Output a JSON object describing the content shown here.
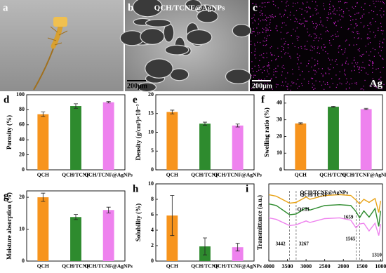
{
  "images": [
    {
      "panel": "a"
    },
    {
      "panel": "b",
      "label": "QCH/TCNF@AgNPs",
      "scale": "200μm"
    },
    {
      "panel": "c",
      "scale": "200μm",
      "element": "Ag"
    }
  ],
  "chart_data": [
    {
      "type": "bar",
      "panel": "d",
      "ylabel": "Porosity (%)",
      "categories": [
        "QCH",
        "QCH/TCNF",
        "QCH/TCNF@AgNPs"
      ],
      "values": [
        74,
        85,
        90
      ],
      "errors": [
        3,
        3,
        1
      ],
      "colors": [
        "#f7941d",
        "#2e8b2e",
        "#ee82ee"
      ],
      "ylim": [
        0,
        100
      ],
      "yticks": [
        0,
        20,
        40,
        60,
        80,
        100
      ]
    },
    {
      "type": "bar",
      "panel": "e",
      "ylabel": "Density (g/cm³)×10⁻³",
      "categories": [
        "QCH",
        "QCH/TCNF",
        "QCH/TCNF@AgNPs"
      ],
      "values": [
        15.4,
        12.3,
        11.8
      ],
      "errors": [
        0.5,
        0.4,
        0.4
      ],
      "colors": [
        "#f7941d",
        "#2e8b2e",
        "#ee82ee"
      ],
      "ylim": [
        0,
        20
      ],
      "yticks": [
        0,
        5,
        10,
        15,
        20
      ]
    },
    {
      "type": "bar",
      "panel": "f",
      "ylabel": "Swelling ratio (%)",
      "categories": [
        "QCH",
        "QCH/TCNF",
        "QCH/TCNF@AgNPs"
      ],
      "values": [
        27.8,
        37.8,
        36.4
      ],
      "errors": [
        0.4,
        0.3,
        0.5
      ],
      "colors": [
        "#f7941d",
        "#2e8b2e",
        "#ee82ee"
      ],
      "ylim": [
        0,
        45
      ],
      "yticks": [
        0,
        10,
        20,
        30,
        40
      ]
    },
    {
      "type": "bar",
      "panel": "g",
      "ylabel": "Moisture absorption (%)",
      "categories": [
        "QCH",
        "QCH/TCNF",
        "QCH/TCNF@AgNPs"
      ],
      "values": [
        20,
        13.8,
        16
      ],
      "errors": [
        1.3,
        0.8,
        0.9
      ],
      "colors": [
        "#f7941d",
        "#2e8b2e",
        "#ee82ee"
      ],
      "ylim": [
        0,
        22
      ],
      "yticks": [
        0,
        10,
        20
      ]
    },
    {
      "type": "bar",
      "panel": "h",
      "ylabel": "Solubility (%)",
      "categories": [
        "QCH",
        "QCH/TCNF",
        "QCH/TCNF@AgNPs"
      ],
      "values": [
        5.9,
        1.9,
        1.8
      ],
      "errors": [
        2.6,
        1.1,
        0.5
      ],
      "colors": [
        "#f7941d",
        "#2e8b2e",
        "#ee82ee"
      ],
      "ylim": [
        0,
        10
      ],
      "yticks": [
        0,
        2,
        4,
        6,
        8,
        10
      ]
    },
    {
      "type": "line",
      "panel": "i",
      "ylabel": "Transmittance (a.u.)",
      "x": [
        4000,
        3800,
        3442,
        3267,
        3000,
        2900,
        2500,
        2100,
        1800,
        1659,
        1565,
        1450,
        1310,
        1150,
        1050,
        1000
      ],
      "series": [
        {
          "name": "QCH/TCNF@AgNPs",
          "color": "#e8a317",
          "values": [
            8.6,
            8.4,
            7.5,
            7.6,
            8.3,
            8.0,
            8.5,
            8.6,
            8.5,
            7.9,
            7.4,
            8.0,
            7.6,
            8.1,
            6.3,
            7.8
          ]
        },
        {
          "name": "QCH/TCNF",
          "color": "#2e8b2e",
          "values": [
            7.4,
            7.2,
            6.0,
            6.1,
            6.9,
            6.6,
            7.2,
            7.3,
            7.2,
            6.4,
            5.6,
            6.5,
            5.7,
            6.8,
            4.5,
            6.5
          ]
        },
        {
          "name": "QCH",
          "color": "#ee82ee",
          "values": [
            5.6,
            5.4,
            4.6,
            4.7,
            5.2,
            5.0,
            5.5,
            5.6,
            5.3,
            4.3,
            4.8,
            4.9,
            3.9,
            4.9,
            3.3,
            4.8
          ]
        }
      ],
      "annotations": [
        {
          "x": 3442,
          "label": "3442"
        },
        {
          "x": 3267,
          "label": "3267"
        },
        {
          "x": 1659,
          "label": "1659"
        },
        {
          "x": 1565,
          "label": "1565"
        },
        {
          "x": 1310,
          "label": "1310"
        }
      ],
      "xlim": [
        4000,
        950
      ],
      "ylim": [
        0,
        10
      ],
      "xticks": [
        4000,
        3500,
        3000,
        2500,
        2000,
        1500,
        1000
      ]
    }
  ]
}
